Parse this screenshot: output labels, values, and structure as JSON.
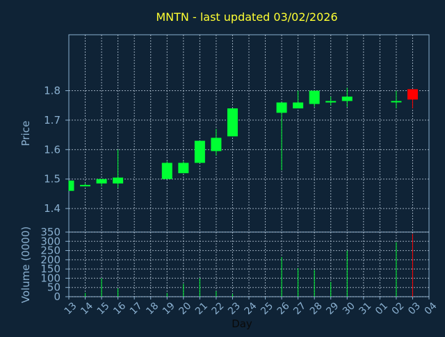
{
  "title": "MNTN - last updated 03/02/2026",
  "colors": {
    "background": "#0f2336",
    "axis": "#8ab0d0",
    "grid": "#c8d8e8",
    "title": "#ffff33",
    "up": "#00ff33",
    "down": "#ff0000"
  },
  "chart_data": [
    {
      "type": "candlestick",
      "ylabel": "Price",
      "ylim": [
        1.32,
        1.99
      ],
      "yticks": [
        1.4,
        1.5,
        1.6,
        1.7,
        1.8
      ],
      "grid": true,
      "categories": [
        "13",
        "14",
        "15",
        "16",
        "17",
        "18",
        "19",
        "20",
        "21",
        "22",
        "23",
        "24",
        "25",
        "26",
        "27",
        "28",
        "29",
        "30",
        "31",
        "01",
        "02",
        "03",
        "04"
      ],
      "candles": [
        {
          "day": "13",
          "open": 1.46,
          "close": 1.495,
          "high": 1.495,
          "low": 1.46
        },
        {
          "day": "14",
          "open": 1.48,
          "close": 1.48,
          "high": 1.485,
          "low": 1.475
        },
        {
          "day": "15",
          "open": 1.485,
          "close": 1.5,
          "high": 1.5,
          "low": 1.475
        },
        {
          "day": "16",
          "open": 1.485,
          "close": 1.505,
          "high": 1.6,
          "low": 1.47
        },
        {
          "day": "19",
          "open": 1.5,
          "close": 1.555,
          "high": 1.56,
          "low": 1.5
        },
        {
          "day": "20",
          "open": 1.52,
          "close": 1.555,
          "high": 1.56,
          "low": 1.52
        },
        {
          "day": "21",
          "open": 1.555,
          "close": 1.63,
          "high": 1.63,
          "low": 1.555
        },
        {
          "day": "22",
          "open": 1.595,
          "close": 1.64,
          "high": 1.67,
          "low": 1.58
        },
        {
          "day": "23",
          "open": 1.645,
          "close": 1.74,
          "high": 1.74,
          "low": 1.645
        },
        {
          "day": "26",
          "open": 1.725,
          "close": 1.76,
          "high": 1.76,
          "low": 1.53
        },
        {
          "day": "27",
          "open": 1.74,
          "close": 1.76,
          "high": 1.8,
          "low": 1.74
        },
        {
          "day": "28",
          "open": 1.755,
          "close": 1.8,
          "high": 1.8,
          "low": 1.745
        },
        {
          "day": "29",
          "open": 1.76,
          "close": 1.765,
          "high": 1.78,
          "low": 1.75
        },
        {
          "day": "30",
          "open": 1.765,
          "close": 1.78,
          "high": 1.81,
          "low": 1.745
        },
        {
          "day": "02",
          "open": 1.765,
          "close": 1.765,
          "high": 1.8,
          "low": 1.74
        },
        {
          "day": "03",
          "open": 1.805,
          "close": 1.77,
          "high": 1.805,
          "low": 1.74
        }
      ]
    },
    {
      "type": "bar",
      "ylabel": "Volume (0000)",
      "xlabel": "Day",
      "ylim": [
        0,
        350
      ],
      "yticks": [
        0,
        50,
        100,
        150,
        200,
        250,
        300,
        350
      ],
      "grid": true,
      "categories": [
        "13",
        "14",
        "15",
        "16",
        "17",
        "18",
        "19",
        "20",
        "21",
        "22",
        "23",
        "24",
        "25",
        "26",
        "27",
        "28",
        "29",
        "30",
        "31",
        "01",
        "02",
        "03",
        "04"
      ],
      "bars": [
        {
          "day": "14",
          "value": 20,
          "direction": "up"
        },
        {
          "day": "15",
          "value": 100,
          "direction": "up"
        },
        {
          "day": "16",
          "value": 45,
          "direction": "up"
        },
        {
          "day": "19",
          "value": 20,
          "direction": "up"
        },
        {
          "day": "20",
          "value": 70,
          "direction": "up"
        },
        {
          "day": "21",
          "value": 100,
          "direction": "up"
        },
        {
          "day": "22",
          "value": 30,
          "direction": "up"
        },
        {
          "day": "23",
          "value": 15,
          "direction": "up"
        },
        {
          "day": "26",
          "value": 215,
          "direction": "up"
        },
        {
          "day": "27",
          "value": 155,
          "direction": "up"
        },
        {
          "day": "28",
          "value": 145,
          "direction": "up"
        },
        {
          "day": "29",
          "value": 80,
          "direction": "up"
        },
        {
          "day": "30",
          "value": 250,
          "direction": "up"
        },
        {
          "day": "02",
          "value": 295,
          "direction": "up"
        },
        {
          "day": "03",
          "value": 340,
          "direction": "down"
        }
      ]
    }
  ]
}
